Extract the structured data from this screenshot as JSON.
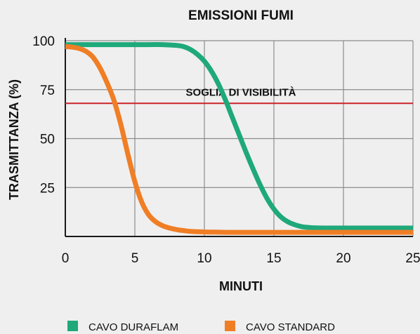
{
  "chart_data": {
    "type": "line",
    "title": "EMISSIONI FUMI",
    "xlabel": "MINUTI",
    "ylabel": "TRASMITTANZA (%)",
    "xlim": [
      0,
      25
    ],
    "ylim": [
      0,
      100
    ],
    "x_ticks": [
      "0",
      "5",
      "10",
      "15",
      "20",
      "25"
    ],
    "y_ticks": [
      "100",
      "75",
      "50",
      "25"
    ],
    "grid": true,
    "legend_position": "bottom",
    "threshold": {
      "label": "SOGLIA DI VISIBILITÀ",
      "value": 68,
      "color": "#cc2229"
    },
    "series": [
      {
        "name": "CAVO DURAFLAM",
        "color": "#1fa97a",
        "x": [
          0,
          2,
          4,
          6,
          7,
          8,
          8.5,
          9,
          9.5,
          10,
          10.5,
          11,
          11.5,
          12,
          12.5,
          13,
          13.5,
          14,
          14.5,
          15,
          15.5,
          16,
          16.5,
          17,
          17.5,
          18,
          19,
          20,
          22,
          25
        ],
        "y": [
          98,
          98,
          98,
          98,
          98,
          97.6,
          97,
          95.5,
          93,
          89.5,
          84.5,
          78,
          70,
          61,
          52,
          43,
          34.5,
          26.5,
          19.5,
          14,
          10,
          7.5,
          6,
          5,
          4.6,
          4.4,
          4.3,
          4.3,
          4.3,
          4.3
        ]
      },
      {
        "name": "CAVO STANDARD",
        "color": "#f07e25",
        "x": [
          0,
          0.5,
          1,
          1.5,
          2,
          2.5,
          3,
          3.5,
          4,
          4.5,
          5,
          5.5,
          6,
          6.5,
          7,
          7.5,
          8,
          8.5,
          9,
          10,
          11,
          12,
          14,
          17,
          20,
          25
        ],
        "y": [
          97,
          96.7,
          96,
          94.5,
          91.5,
          86,
          78.5,
          69.5,
          57,
          42,
          28,
          17.5,
          11,
          7.5,
          5.5,
          4.3,
          3.5,
          3,
          2.6,
          2.3,
          2.2,
          2.1,
          2.1,
          2.1,
          2.1,
          2.1
        ]
      }
    ]
  }
}
